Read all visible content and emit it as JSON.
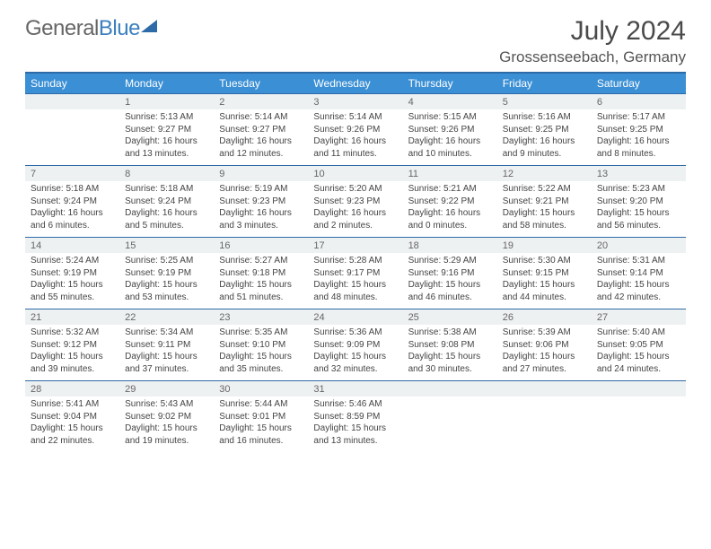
{
  "logo": {
    "general": "General",
    "blue": "Blue"
  },
  "title": "July 2024",
  "location": "Grossenseebach, Germany",
  "weekdays": [
    "Sunday",
    "Monday",
    "Tuesday",
    "Wednesday",
    "Thursday",
    "Friday",
    "Saturday"
  ],
  "header_bg": "#3b8fd4",
  "header_border": "#2d6aa8",
  "dayrow_bg": "#eef1f2",
  "weeks": [
    {
      "days": [
        {
          "n": "",
          "lines": [
            "",
            "",
            "",
            ""
          ]
        },
        {
          "n": "1",
          "lines": [
            "Sunrise: 5:13 AM",
            "Sunset: 9:27 PM",
            "Daylight: 16 hours",
            "and 13 minutes."
          ]
        },
        {
          "n": "2",
          "lines": [
            "Sunrise: 5:14 AM",
            "Sunset: 9:27 PM",
            "Daylight: 16 hours",
            "and 12 minutes."
          ]
        },
        {
          "n": "3",
          "lines": [
            "Sunrise: 5:14 AM",
            "Sunset: 9:26 PM",
            "Daylight: 16 hours",
            "and 11 minutes."
          ]
        },
        {
          "n": "4",
          "lines": [
            "Sunrise: 5:15 AM",
            "Sunset: 9:26 PM",
            "Daylight: 16 hours",
            "and 10 minutes."
          ]
        },
        {
          "n": "5",
          "lines": [
            "Sunrise: 5:16 AM",
            "Sunset: 9:25 PM",
            "Daylight: 16 hours",
            "and 9 minutes."
          ]
        },
        {
          "n": "6",
          "lines": [
            "Sunrise: 5:17 AM",
            "Sunset: 9:25 PM",
            "Daylight: 16 hours",
            "and 8 minutes."
          ]
        }
      ]
    },
    {
      "days": [
        {
          "n": "7",
          "lines": [
            "Sunrise: 5:18 AM",
            "Sunset: 9:24 PM",
            "Daylight: 16 hours",
            "and 6 minutes."
          ]
        },
        {
          "n": "8",
          "lines": [
            "Sunrise: 5:18 AM",
            "Sunset: 9:24 PM",
            "Daylight: 16 hours",
            "and 5 minutes."
          ]
        },
        {
          "n": "9",
          "lines": [
            "Sunrise: 5:19 AM",
            "Sunset: 9:23 PM",
            "Daylight: 16 hours",
            "and 3 minutes."
          ]
        },
        {
          "n": "10",
          "lines": [
            "Sunrise: 5:20 AM",
            "Sunset: 9:23 PM",
            "Daylight: 16 hours",
            "and 2 minutes."
          ]
        },
        {
          "n": "11",
          "lines": [
            "Sunrise: 5:21 AM",
            "Sunset: 9:22 PM",
            "Daylight: 16 hours",
            "and 0 minutes."
          ]
        },
        {
          "n": "12",
          "lines": [
            "Sunrise: 5:22 AM",
            "Sunset: 9:21 PM",
            "Daylight: 15 hours",
            "and 58 minutes."
          ]
        },
        {
          "n": "13",
          "lines": [
            "Sunrise: 5:23 AM",
            "Sunset: 9:20 PM",
            "Daylight: 15 hours",
            "and 56 minutes."
          ]
        }
      ]
    },
    {
      "days": [
        {
          "n": "14",
          "lines": [
            "Sunrise: 5:24 AM",
            "Sunset: 9:19 PM",
            "Daylight: 15 hours",
            "and 55 minutes."
          ]
        },
        {
          "n": "15",
          "lines": [
            "Sunrise: 5:25 AM",
            "Sunset: 9:19 PM",
            "Daylight: 15 hours",
            "and 53 minutes."
          ]
        },
        {
          "n": "16",
          "lines": [
            "Sunrise: 5:27 AM",
            "Sunset: 9:18 PM",
            "Daylight: 15 hours",
            "and 51 minutes."
          ]
        },
        {
          "n": "17",
          "lines": [
            "Sunrise: 5:28 AM",
            "Sunset: 9:17 PM",
            "Daylight: 15 hours",
            "and 48 minutes."
          ]
        },
        {
          "n": "18",
          "lines": [
            "Sunrise: 5:29 AM",
            "Sunset: 9:16 PM",
            "Daylight: 15 hours",
            "and 46 minutes."
          ]
        },
        {
          "n": "19",
          "lines": [
            "Sunrise: 5:30 AM",
            "Sunset: 9:15 PM",
            "Daylight: 15 hours",
            "and 44 minutes."
          ]
        },
        {
          "n": "20",
          "lines": [
            "Sunrise: 5:31 AM",
            "Sunset: 9:14 PM",
            "Daylight: 15 hours",
            "and 42 minutes."
          ]
        }
      ]
    },
    {
      "days": [
        {
          "n": "21",
          "lines": [
            "Sunrise: 5:32 AM",
            "Sunset: 9:12 PM",
            "Daylight: 15 hours",
            "and 39 minutes."
          ]
        },
        {
          "n": "22",
          "lines": [
            "Sunrise: 5:34 AM",
            "Sunset: 9:11 PM",
            "Daylight: 15 hours",
            "and 37 minutes."
          ]
        },
        {
          "n": "23",
          "lines": [
            "Sunrise: 5:35 AM",
            "Sunset: 9:10 PM",
            "Daylight: 15 hours",
            "and 35 minutes."
          ]
        },
        {
          "n": "24",
          "lines": [
            "Sunrise: 5:36 AM",
            "Sunset: 9:09 PM",
            "Daylight: 15 hours",
            "and 32 minutes."
          ]
        },
        {
          "n": "25",
          "lines": [
            "Sunrise: 5:38 AM",
            "Sunset: 9:08 PM",
            "Daylight: 15 hours",
            "and 30 minutes."
          ]
        },
        {
          "n": "26",
          "lines": [
            "Sunrise: 5:39 AM",
            "Sunset: 9:06 PM",
            "Daylight: 15 hours",
            "and 27 minutes."
          ]
        },
        {
          "n": "27",
          "lines": [
            "Sunrise: 5:40 AM",
            "Sunset: 9:05 PM",
            "Daylight: 15 hours",
            "and 24 minutes."
          ]
        }
      ]
    },
    {
      "days": [
        {
          "n": "28",
          "lines": [
            "Sunrise: 5:41 AM",
            "Sunset: 9:04 PM",
            "Daylight: 15 hours",
            "and 22 minutes."
          ]
        },
        {
          "n": "29",
          "lines": [
            "Sunrise: 5:43 AM",
            "Sunset: 9:02 PM",
            "Daylight: 15 hours",
            "and 19 minutes."
          ]
        },
        {
          "n": "30",
          "lines": [
            "Sunrise: 5:44 AM",
            "Sunset: 9:01 PM",
            "Daylight: 15 hours",
            "and 16 minutes."
          ]
        },
        {
          "n": "31",
          "lines": [
            "Sunrise: 5:46 AM",
            "Sunset: 8:59 PM",
            "Daylight: 15 hours",
            "and 13 minutes."
          ]
        },
        {
          "n": "",
          "lines": [
            "",
            "",
            "",
            ""
          ]
        },
        {
          "n": "",
          "lines": [
            "",
            "",
            "",
            ""
          ]
        },
        {
          "n": "",
          "lines": [
            "",
            "",
            "",
            ""
          ]
        }
      ]
    }
  ]
}
